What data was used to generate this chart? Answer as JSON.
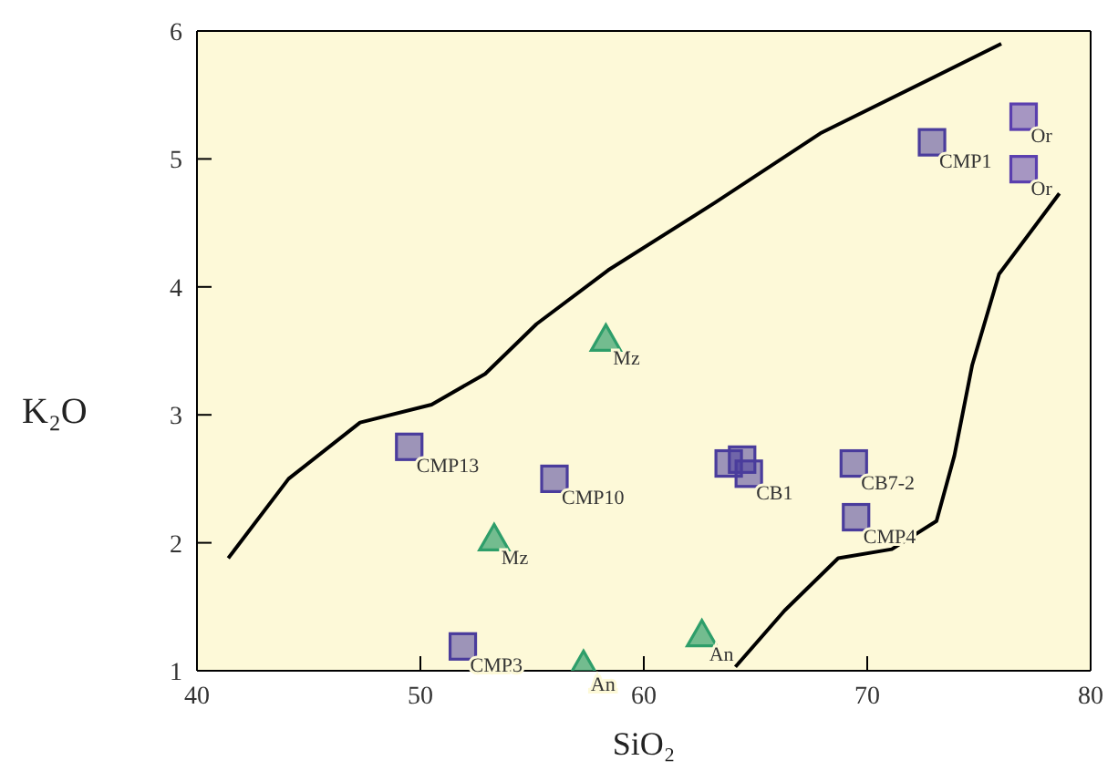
{
  "chart_data": {
    "type": "scatter",
    "xlabel": "SiO₂",
    "ylabel": "K₂O",
    "xlim": [
      40,
      80
    ],
    "xticks": [
      40,
      50,
      60,
      70,
      80
    ],
    "ylim": [
      1,
      6
    ],
    "yticks": [
      1,
      2,
      3,
      4,
      5,
      6
    ],
    "grid": false,
    "legend": false,
    "series": [
      {
        "marker": "square",
        "color": "#4a3c9c",
        "x": [
          72.9,
          49.5,
          56.0,
          63.8,
          64.4,
          64.7,
          69.4,
          69.5,
          51.9
        ],
        "values": [
          5.13,
          2.75,
          2.5,
          2.62,
          2.65,
          2.54,
          2.62,
          2.2,
          1.19
        ]
      },
      {
        "marker": "square",
        "color": "#5a3fae",
        "x": [
          77.0,
          77.0
        ],
        "values": [
          5.33,
          4.92
        ]
      },
      {
        "marker": "triangle",
        "color": "#2e9e6a",
        "x": [
          58.3,
          53.3
        ],
        "values": [
          3.59,
          2.03
        ]
      },
      {
        "marker": "triangle",
        "color": "#2e9e6a",
        "x": [
          57.3,
          62.6
        ],
        "values": [
          1.04,
          1.28
        ]
      },
      {
        "type": "line",
        "marker": "none",
        "color": "#000000",
        "x": [
          41.4,
          44.1,
          47.3,
          50.5,
          52.9,
          55.2,
          58.4,
          63.2,
          67.9,
          76.0
        ],
        "values": [
          1.88,
          2.5,
          2.94,
          3.08,
          3.32,
          3.71,
          4.13,
          4.66,
          5.2,
          5.9
        ]
      },
      {
        "type": "line",
        "marker": "none",
        "color": "#000000",
        "x": [
          64.1,
          66.3,
          68.7,
          71.1,
          73.1,
          73.9,
          74.7,
          75.9,
          78.6
        ],
        "values": [
          1.03,
          1.47,
          1.88,
          1.95,
          2.17,
          2.68,
          3.39,
          4.1,
          4.73
        ]
      }
    ],
    "annotations": [
      {
        "text": "CMP1",
        "x": 72.9,
        "y": 5.13
      },
      {
        "text": "Or",
        "x": 77.0,
        "y": 5.33
      },
      {
        "text": "Or",
        "x": 77.0,
        "y": 4.92
      },
      {
        "text": "Mz",
        "x": 58.3,
        "y": 3.59
      },
      {
        "text": "CMP13",
        "x": 49.5,
        "y": 2.75
      },
      {
        "text": "CMP10",
        "x": 56.0,
        "y": 2.5
      },
      {
        "text": "Mz",
        "x": 53.3,
        "y": 2.03
      },
      {
        "text": "CB1",
        "x": 64.7,
        "y": 2.54
      },
      {
        "text": "CB7-2",
        "x": 69.4,
        "y": 2.62
      },
      {
        "text": "CMP4",
        "x": 69.5,
        "y": 2.2
      },
      {
        "text": "CMP3",
        "x": 51.9,
        "y": 1.19
      },
      {
        "text": "An",
        "x": 57.3,
        "y": 1.04
      },
      {
        "text": "An",
        "x": 62.6,
        "y": 1.28
      }
    ]
  }
}
